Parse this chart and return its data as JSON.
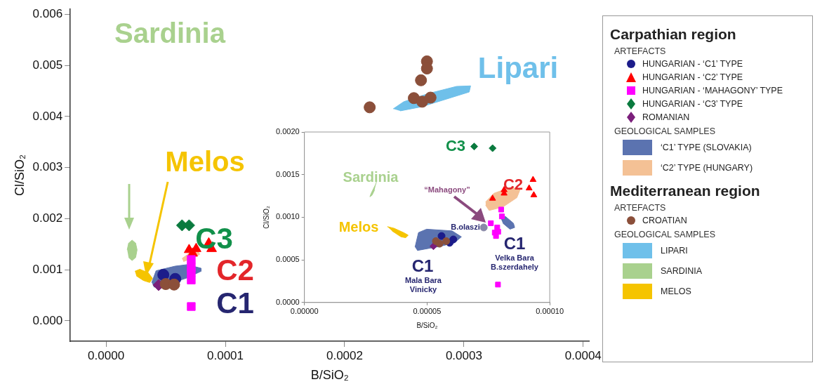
{
  "chart_data": [
    {
      "type": "scatter",
      "xlabel": "B/SiO₂",
      "ylabel": "Cl/SiO₂",
      "legend": "right",
      "grid": false,
      "xlim": [
        -3e-05,
        0.000405
      ],
      "ylim": [
        -0.0004,
        0.0061
      ],
      "xticks": [
        {
          "value": 0,
          "label": "0.0000"
        },
        {
          "value": 0.0001,
          "label": "0.0001"
        },
        {
          "value": 0.0002,
          "label": "0.0002"
        },
        {
          "value": 0.0003,
          "label": "0.0003"
        },
        {
          "value": 0.0004,
          "label": "0.0004"
        }
      ],
      "yticks": [
        {
          "value": 0,
          "label": "0.000"
        },
        {
          "value": 0.001,
          "label": "0.001"
        },
        {
          "value": 0.002,
          "label": "0.002"
        },
        {
          "value": 0.003,
          "label": "0.003"
        },
        {
          "value": 0.004,
          "label": "0.004"
        },
        {
          "value": 0.005,
          "label": "0.005"
        },
        {
          "value": 0.006,
          "label": "0.006"
        }
      ],
      "series": [
        {
          "name": "HUNGARIAN - ‘C1’ TYPE",
          "type": "scatter",
          "marker": "circle",
          "color": "#1c1c8a",
          "x": [
            4.8e-05,
            5.8e-05
          ],
          "values": [
            0.0009,
            0.00082
          ]
        },
        {
          "name": "HUNGARIAN - ‘C2’ TYPE",
          "type": "scatter",
          "marker": "triangle",
          "color": "#ff0000",
          "x": [
            6.96e-05,
            7.26e-05,
            7.55e-05,
            8.61e-05,
            8.85e-05
          ],
          "values": [
            0.00139,
            0.00132,
            0.00141,
            0.00152,
            0.00141
          ]
        },
        {
          "name": "HUNGARIAN - ‘MAHAGONY’ TYPE",
          "type": "scatter",
          "marker": "square",
          "color": "#ff00ff",
          "x": [
            7.14e-05,
            7.14e-05,
            7.14e-05,
            7.14e-05,
            7.14e-05
          ],
          "values": [
            0.0012,
            0.00105,
            0.00095,
            0.0008,
            0.00028
          ]
        },
        {
          "name": "HUNGARIAN - ‘C3’ TYPE",
          "type": "scatter",
          "marker": "diamond",
          "color": "#0a7a3e",
          "x": [
            6.37e-05,
            6.96e-05
          ],
          "values": [
            0.00187,
            0.00187
          ]
        },
        {
          "name": "ROMANIAN",
          "type": "scatter",
          "marker": "diamond",
          "color": "#7b1f7b",
          "x": [
            4.4e-05
          ],
          "values": [
            0.0007
          ]
        },
        {
          "name": "‘C1’ TYPE (SLOVAKIA)",
          "type": "area",
          "color": "#5b73b0",
          "x": [
            3.83e-05,
            4.19e-05,
            5.78e-05,
            6.78e-05,
            7.96e-05,
            7.96e-05,
            6.78e-05,
            5.37e-05,
            4.01e-05
          ],
          "values": [
            0.00075,
            0.00098,
            0.00107,
            0.0011,
            0.00103,
            0.00097,
            0.00084,
            0.00073,
            0.00066
          ]
        },
        {
          "name": "‘C2’ TYPE (HUNGARY)",
          "type": "area",
          "color": "#f4c195",
          "x": [
            6.37e-05,
            6.96e-05,
            7.73e-05,
            7.85e-05,
            7.14e-05,
            6.49e-05
          ],
          "values": [
            0.00122,
            0.00132,
            0.00136,
            0.0013,
            0.00122,
            0.00116
          ]
        },
        {
          "name": "CROATIAN",
          "type": "scatter",
          "marker": "circle",
          "color": "#8b4f3a",
          "x": [
            0.000221,
            0.000264,
            0.000269,
            0.000269,
            0.000258,
            0.000265,
            0.000272,
            5e-05,
            5.7e-05
          ],
          "values": [
            0.00418,
            0.00471,
            0.00508,
            0.00494,
            0.00436,
            0.00429,
            0.00437,
            0.00072,
            0.00071
          ]
        },
        {
          "name": "LIPARI",
          "type": "area",
          "color": "#6fc0ea",
          "x": [
            0.0002407,
            0.0002496,
            0.0002702,
            0.0002938,
            0.0003056,
            0.0003044,
            0.0002879,
            0.0002643,
            0.0002466
          ],
          "values": [
            0.00415,
            0.00429,
            0.00445,
            0.00459,
            0.0046,
            0.00448,
            0.00436,
            0.00419,
            0.00411
          ]
        },
        {
          "name": "SARDINIA",
          "type": "area",
          "color": "#a9d18e",
          "x": [
            1.77e-05,
            1.89e-05,
            2.18e-05,
            2.48e-05,
            2.6e-05,
            2.48e-05,
            2.18e-05,
            1.89e-05
          ],
          "values": [
            0.00139,
            0.00152,
            0.00158,
            0.00152,
            0.00139,
            0.00124,
            0.00118,
            0.00124
          ]
        },
        {
          "name": "MELOS",
          "type": "area",
          "color": "#f5c400",
          "x": [
            2.42e-05,
            2.83e-05,
            3.54e-05,
            3.89e-05,
            3.66e-05,
            3.13e-05,
            2.54e-05
          ],
          "values": [
            0.00097,
            0.00101,
            0.00094,
            0.00083,
            0.00075,
            0.00079,
            0.00088
          ]
        }
      ],
      "annotations": [
        "Lipari",
        "Sardinia",
        "Melos",
        "C3",
        "C2",
        "C1",
        "Carpathian region",
        "ARTEFACTS",
        "GEOLOGICAL SAMPLES",
        "Mediterranean region",
        "ARTEFACTS",
        "GEOLOGICAL SAMPLES"
      ]
    },
    {
      "type": "scatter",
      "xlabel": "B/SiO₂",
      "ylabel": "Cl/SiO₂",
      "legend": false,
      "grid": false,
      "xlim": [
        0,
        0.0001
      ],
      "ylim": [
        0,
        0.002
      ],
      "xticks": [
        {
          "value": 0,
          "label": "0.00000"
        },
        {
          "value": 5e-05,
          "label": "0.00005"
        },
        {
          "value": 0.0001,
          "label": "0.00010"
        }
      ],
      "yticks": [
        {
          "value": 0,
          "label": "0.0000"
        },
        {
          "value": 0.0005,
          "label": "0.0005"
        },
        {
          "value": 0.001,
          "label": "0.0010"
        },
        {
          "value": 0.0015,
          "label": "0.0015"
        },
        {
          "value": 0.002,
          "label": "0.0020"
        }
      ],
      "series": [
        {
          "type": "scatter",
          "marker": "circle",
          "color": "#1c1c8a",
          "x": [
            5.59e-05,
            6.07e-05,
            5.92e-05
          ],
          "values": [
            0.00078,
            0.00074,
            0.0007
          ]
        },
        {
          "type": "scatter",
          "marker": "triangle",
          "color": "#ff0000",
          "x": [
            7.67e-05,
            8.14e-05,
            8.14e-05,
            9.16e-05,
            9.32e-05,
            9.35e-05
          ],
          "values": [
            0.00122,
            0.00132,
            0.00128,
            0.00134,
            0.00144,
            0.00126
          ]
        },
        {
          "type": "scatter",
          "marker": "square",
          "color": "#ff00ff",
          "x": [
            8.02e-05,
            8.05e-05,
            7.6e-05,
            7.86e-05,
            7.9e-05,
            7.76e-05,
            7.81e-05,
            7.89e-05
          ],
          "values": [
            0.00109,
            0.00101,
            0.00093,
            0.00088,
            0.00083,
            0.00082,
            0.00078,
            0.00021
          ]
        },
        {
          "type": "scatter",
          "marker": "diamond",
          "color": "#0a7a3e",
          "x": [
            6.92e-05,
            7.67e-05
          ],
          "values": [
            0.00183,
            0.00181
          ]
        },
        {
          "type": "scatter",
          "marker": "diamond",
          "color": "#7b1f7b",
          "x": [
            5.26e-05
          ],
          "values": [
            0.00066
          ]
        },
        {
          "type": "scatter",
          "marker": "circle",
          "color": "#8b4f3a",
          "x": [
            5.36e-05,
            5.78e-05,
            5.51e-05
          ],
          "values": [
            0.00072,
            0.00072,
            0.00069
          ]
        },
        {
          "type": "scatter",
          "marker": "circle",
          "color": "#8a8aa8",
          "x": [
            7.31e-05
          ],
          "values": [
            0.00088
          ]
        },
        {
          "type": "area",
          "color": "#5b73b0",
          "x": [
            4.51e-05,
            4.65e-05,
            4.98e-05,
            6.02e-05,
            6.4e-05,
            6.11e-05,
            5.55e-05,
            4.6e-05
          ],
          "values": [
            0.00065,
            0.00082,
            0.00086,
            0.00084,
            0.00077,
            0.0007,
            0.00066,
            0.00061
          ]
        },
        {
          "type": "area",
          "color": "#5b73b0",
          "x": [
            8e-05,
            8.19e-05,
            8.52e-05,
            8.57e-05,
            8.38e-05,
            8.09e-05
          ],
          "values": [
            0.00099,
            0.00101,
            0.00093,
            0.00088,
            0.00086,
            0.00093
          ]
        },
        {
          "type": "area",
          "color": "#f4c195",
          "x": [
            7.39e-05,
            7.72e-05,
            8.38e-05,
            8.8e-05,
            8.66e-05,
            8.09e-05,
            7.53e-05,
            7.39e-05
          ],
          "values": [
            0.00118,
            0.00128,
            0.00135,
            0.00133,
            0.00123,
            0.00112,
            0.00108,
            0.00114
          ]
        },
        {
          "type": "area",
          "color": "#a9d18e",
          "x": [
            2.95e-05,
            2.91e-05,
            2.72e-05,
            2.67e-05,
            2.76e-05,
            2.86e-05
          ],
          "values": [
            0.00143,
            0.00139,
            0.00128,
            0.00124,
            0.00126,
            0.00132
          ]
        },
        {
          "type": "area",
          "color": "#f5c400",
          "x": [
            3.38e-05,
            3.66e-05,
            4.04e-05,
            4.23e-05,
            4.13e-05,
            3.94e-05,
            3.57e-05
          ],
          "values": [
            0.00089,
            0.00087,
            0.00082,
            0.00079,
            0.00076,
            0.00077,
            0.00084
          ]
        }
      ],
      "annotations": [
        "C3",
        "C2",
        "Sardinia",
        "Melos",
        "C1",
        "C1",
        "“Mahagony”",
        "B.olaszi",
        "Mala Bara",
        "Vinicky",
        "Velka Bara",
        "B.szerdahely"
      ]
    }
  ]
}
